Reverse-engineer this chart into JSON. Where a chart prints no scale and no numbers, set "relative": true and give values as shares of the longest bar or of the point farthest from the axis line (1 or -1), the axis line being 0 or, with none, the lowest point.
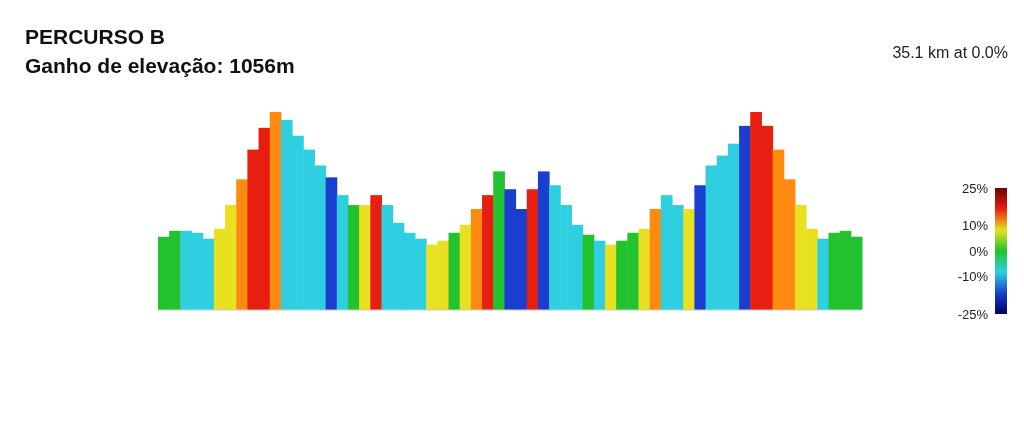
{
  "chart_data": {
    "type": "bar",
    "title": "PERCURSO B",
    "subtitle": "Ganho de elevação: 1056m",
    "annotations": [
      "35.1 km at 0.0%"
    ],
    "relative": true,
    "categories": [
      null,
      null,
      null,
      null,
      null,
      null,
      null,
      null,
      null,
      null,
      null,
      null,
      null,
      null,
      null,
      null,
      null,
      null,
      null,
      null,
      null,
      null,
      null,
      null,
      null,
      null,
      null,
      null,
      null,
      null,
      null,
      null,
      null,
      null,
      null,
      null,
      null,
      null,
      null,
      null,
      null,
      null,
      null,
      null,
      null,
      null,
      null,
      null,
      null,
      null,
      null,
      null,
      null,
      null,
      null,
      null,
      null,
      null,
      null,
      null,
      null,
      null,
      null
    ],
    "values": [
      0.37,
      0.4,
      0.4,
      0.39,
      0.36,
      0.41,
      0.53,
      0.66,
      0.81,
      0.92,
      1,
      0.96,
      0.88,
      0.81,
      0.73,
      0.67,
      0.58,
      0.53,
      0.53,
      0.58,
      0.53,
      0.44,
      0.39,
      0.36,
      0.33,
      0.35,
      0.39,
      0.43,
      0.51,
      0.58,
      0.7,
      0.61,
      0.51,
      0.61,
      0.7,
      0.63,
      0.53,
      0.43,
      0.38,
      0.35,
      0.33,
      0.35,
      0.39,
      0.41,
      0.51,
      0.58,
      0.53,
      0.51,
      0.63,
      0.73,
      0.78,
      0.84,
      0.93,
      1,
      0.93,
      0.81,
      0.66,
      0.53,
      0.41,
      0.36,
      0.39,
      0.4,
      0.37
    ],
    "colors": [
      "#22c32e",
      "#22c32e",
      "#2ecfe0",
      "#2ecfe0",
      "#2ecfe0",
      "#e8e020",
      "#e8e020",
      "#ff8a10",
      "#e81e10",
      "#e81e10",
      "#ff8a10",
      "#2ecfe0",
      "#2ecfe0",
      "#2ecfe0",
      "#2ecfe0",
      "#1a3fd0",
      "#2ecfe0",
      "#22c32e",
      "#e8e020",
      "#e81e10",
      "#2ecfe0",
      "#2ecfe0",
      "#2ecfe0",
      "#2ecfe0",
      "#e8e020",
      "#e8e020",
      "#22c32e",
      "#e8e020",
      "#ff8a10",
      "#e81e10",
      "#22c32e",
      "#1a3fd0",
      "#1a3fd0",
      "#e81e10",
      "#1a3fd0",
      "#2ecfe0",
      "#2ecfe0",
      "#2ecfe0",
      "#22c32e",
      "#2ecfe0",
      "#e8e020",
      "#22c32e",
      "#22c32e",
      "#e8e020",
      "#ff8a10",
      "#2ecfe0",
      "#2ecfe0",
      "#e8e020",
      "#1a3fd0",
      "#2ecfe0",
      "#2ecfe0",
      "#2ecfe0",
      "#1a3fd0",
      "#e81e10",
      "#e81e10",
      "#ff8a10",
      "#ff8a10",
      "#e8e020",
      "#e8e020",
      "#2ecfe0",
      "#22c32e",
      "#22c32e",
      "#22c32e"
    ],
    "clim": [
      -25,
      25
    ],
    "cticks": [
      {
        "value": 25,
        "label": "25%"
      },
      {
        "value": 10,
        "label": "10%"
      },
      {
        "value": 0,
        "label": "0%"
      },
      {
        "value": -10,
        "label": "-10%"
      },
      {
        "value": -25,
        "label": "-25%"
      }
    ]
  }
}
